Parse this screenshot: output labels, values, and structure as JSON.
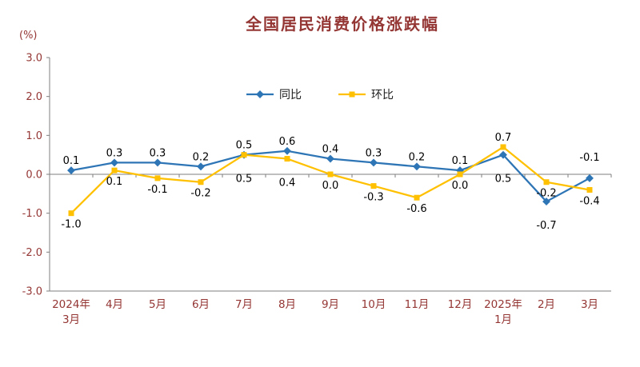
{
  "title": "全国居民消费价格涨跌幅",
  "unit_label": "(%)",
  "colors": {
    "title": "#943634",
    "axis_text": "#943634",
    "axis_line": "#7f7f7f",
    "data_label": "#000000",
    "background": "#ffffff"
  },
  "chart_data": {
    "type": "line",
    "title": "全国居民消费价格涨跌幅",
    "ylabel": "(%)",
    "categories": [
      "2024年\n3月",
      "4月",
      "5月",
      "6月",
      "7月",
      "8月",
      "9月",
      "10月",
      "11月",
      "12月",
      "2025年\n1月",
      "2月",
      "3月"
    ],
    "series": [
      {
        "id": "yoy",
        "name": "同比",
        "color": "#2e75b6",
        "marker": "diamond",
        "values": [
          0.1,
          0.3,
          0.3,
          0.2,
          0.5,
          0.6,
          0.4,
          0.3,
          0.2,
          0.1,
          0.5,
          -0.7,
          -0.1
        ],
        "label_side": [
          "above",
          "above",
          "above",
          "above",
          "above",
          "above",
          "above",
          "above",
          "above",
          "above",
          "belowfar",
          "belowfar",
          "abovefar"
        ]
      },
      {
        "id": "mom",
        "name": "环比",
        "color": "#ffc000",
        "marker": "square",
        "values": [
          -1.0,
          0.1,
          -0.1,
          -0.2,
          0.5,
          0.4,
          0.0,
          -0.3,
          -0.6,
          0.0,
          0.7,
          -0.2,
          -0.4
        ],
        "label_side": [
          "below",
          "below",
          "below",
          "below",
          "belowfar",
          "belowfar",
          "below",
          "below",
          "below",
          "below",
          "above",
          "below",
          "below"
        ]
      }
    ],
    "ylim": [
      -3,
      3
    ],
    "yticks": [
      3,
      2,
      1,
      0,
      -1,
      -2,
      -3
    ],
    "grid": false,
    "legend_position": "top-center"
  }
}
